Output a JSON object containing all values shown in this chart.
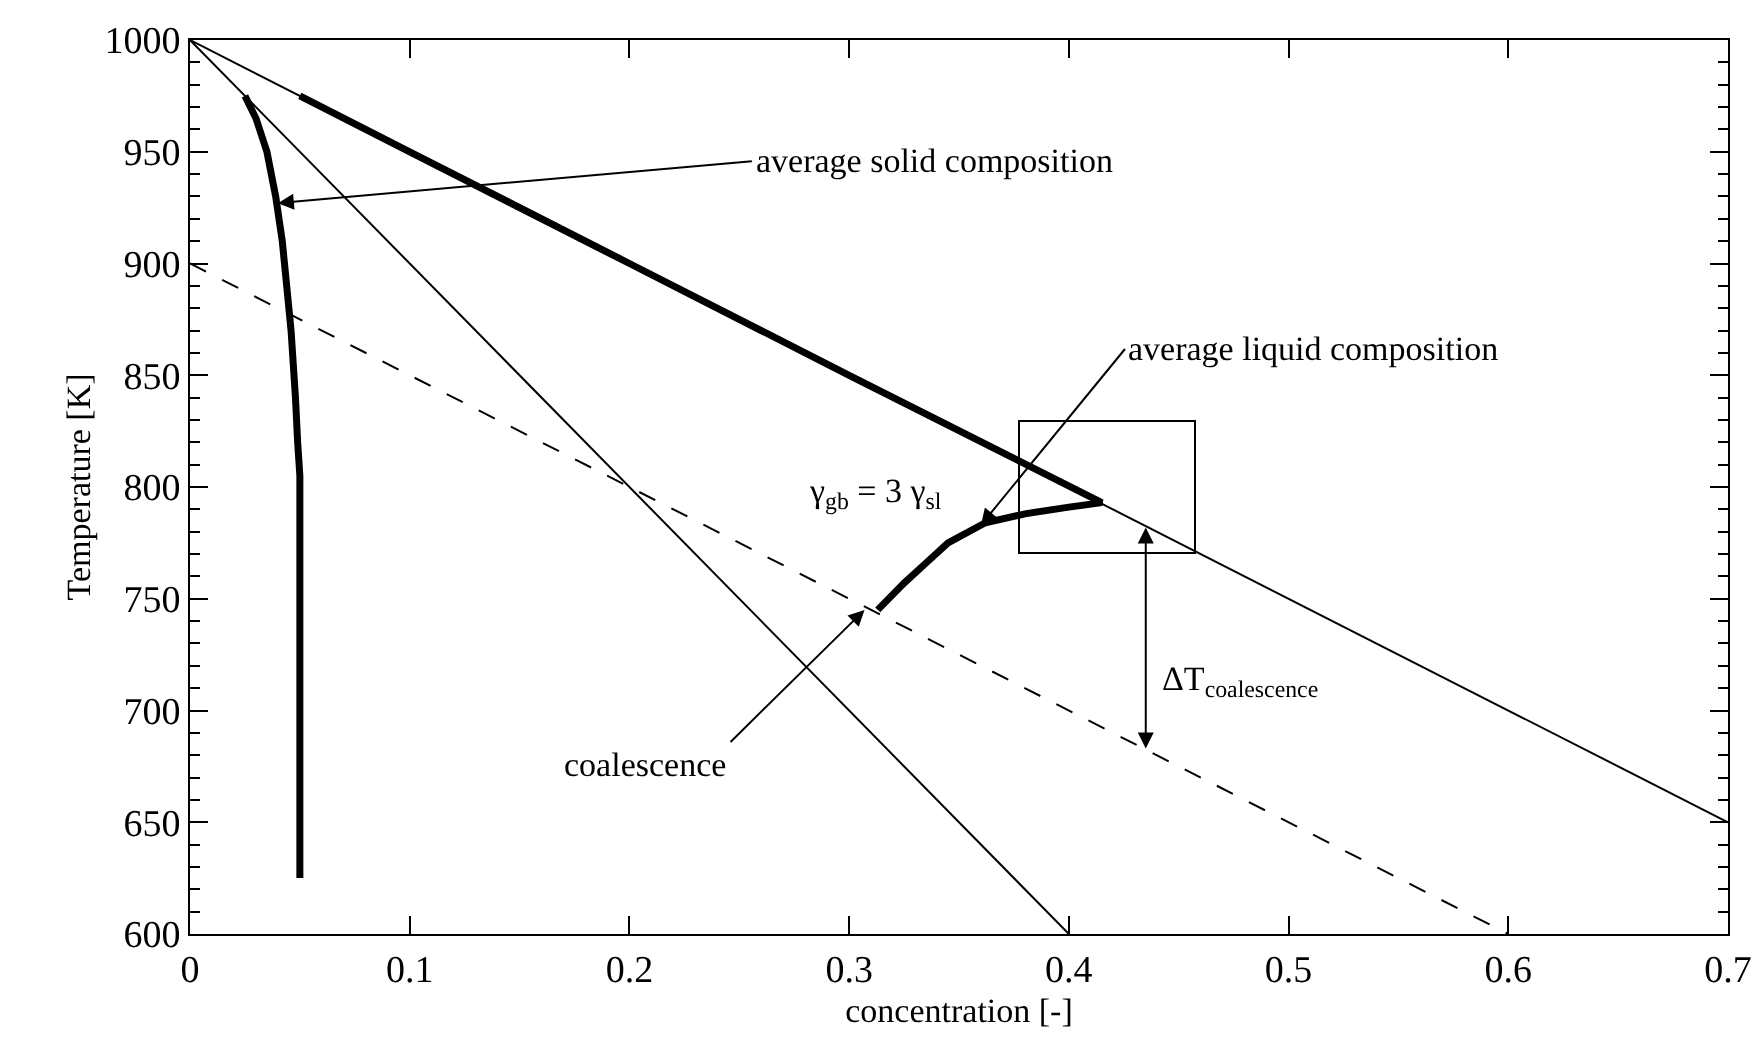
{
  "chart_data": {
    "type": "line",
    "xlabel": "concentration [-]",
    "ylabel": "Temperature [K]",
    "xlim": [
      0,
      0.7
    ],
    "xticks": [
      0,
      0.1,
      0.2,
      0.3,
      0.4,
      0.5,
      0.6,
      0.7
    ],
    "ylim": [
      600,
      1000
    ],
    "yticks": [
      600,
      650,
      700,
      750,
      800,
      850,
      900,
      950,
      1000
    ],
    "grid": false,
    "marker": "none",
    "series": [
      {
        "color": "#000000",
        "x": [
          0,
          0.7
        ],
        "values": [
          1000,
          650
        ]
      },
      {
        "color": "#000000",
        "x": [
          0,
          0.4
        ],
        "values": [
          1000,
          600
        ]
      },
      {
        "color": "#000000",
        "line_style": "dashed",
        "x": [
          0,
          0.6
        ],
        "values": [
          900,
          600
        ]
      },
      {
        "color": "#000000",
        "x": [
          0.05,
          0.1,
          0.2,
          0.3,
          0.415,
          0.4,
          0.38,
          0.362,
          0.345,
          0.335,
          0.325,
          0.313
        ],
        "values": [
          975,
          950,
          900,
          850,
          793,
          791,
          788,
          784,
          775,
          766,
          757,
          745
        ]
      },
      {
        "color": "#000000",
        "x": [
          0.025,
          0.03,
          0.035,
          0.039,
          0.042,
          0.044,
          0.046,
          0.048,
          0.049,
          0.05,
          0.05,
          0.05
        ],
        "values": [
          975,
          965,
          950,
          930,
          910,
          890,
          870,
          840,
          820,
          805,
          795,
          625
        ]
      }
    ],
    "annotations": [
      {
        "text": "average solid composition",
        "x": 0.04,
        "y": 927
      },
      {
        "text": "average liquid composition",
        "x": 0.36,
        "y": 783
      },
      {
        "text": "coalescence",
        "x": 0.307,
        "y": 745
      },
      "γ$_{gb}$ = 3 γ$_{sl}$",
      {
        "text": "ΔT$_{coalescence}$",
        "x": 0.435,
        "y": 683
      }
    ]
  }
}
